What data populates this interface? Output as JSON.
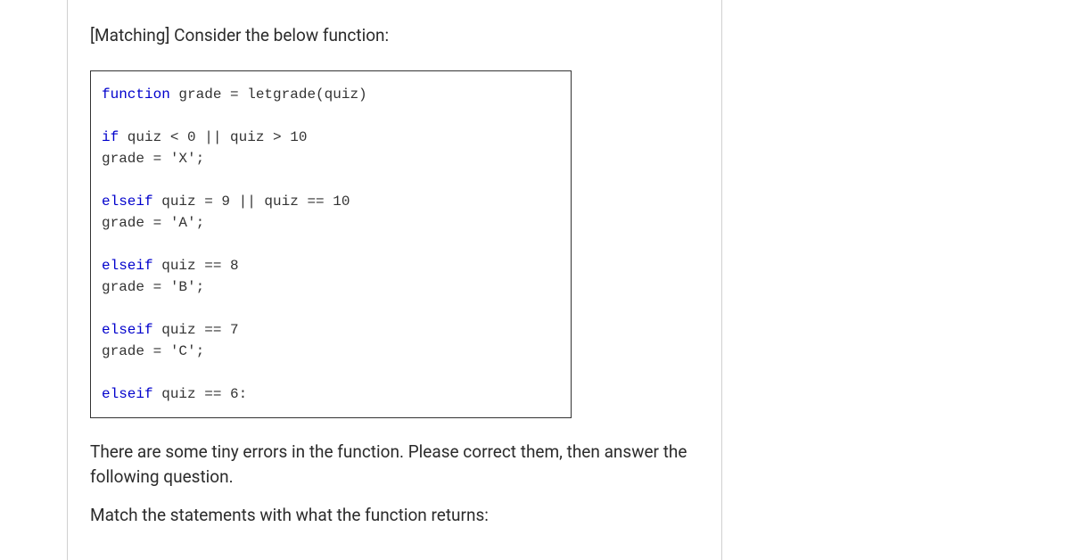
{
  "question": {
    "title": "[Matching] Consider the below function:",
    "body1": "There are some tiny errors in the function. Please correct them, then answer the following question.",
    "body2": "Match the statements with what the function returns:"
  },
  "code": {
    "fontFamily": "Courier New, Courier, monospace",
    "fontSize": 16,
    "borderColor": "#333333",
    "keywordColor": "#0000cc",
    "textColor": "#333333",
    "lines": [
      {
        "kw": "function",
        "rest": " grade = letgrade(quiz)"
      },
      {
        "blank": true
      },
      {
        "kw": "if",
        "rest": " quiz < 0 || quiz > 10"
      },
      {
        "rest": "grade = 'X';"
      },
      {
        "blank": true
      },
      {
        "kw": "elseif",
        "rest": " quiz = 9 || quiz == 10"
      },
      {
        "rest": "grade = 'A';"
      },
      {
        "blank": true
      },
      {
        "kw": "elseif",
        "rest": " quiz == 8"
      },
      {
        "rest": "grade = 'B';"
      },
      {
        "blank": true
      },
      {
        "kw": "elseif",
        "rest": " quiz == 7"
      },
      {
        "rest": "grade = 'C';"
      },
      {
        "blank": true
      },
      {
        "kw": "elseif",
        "rest": " quiz == 6:"
      }
    ]
  }
}
